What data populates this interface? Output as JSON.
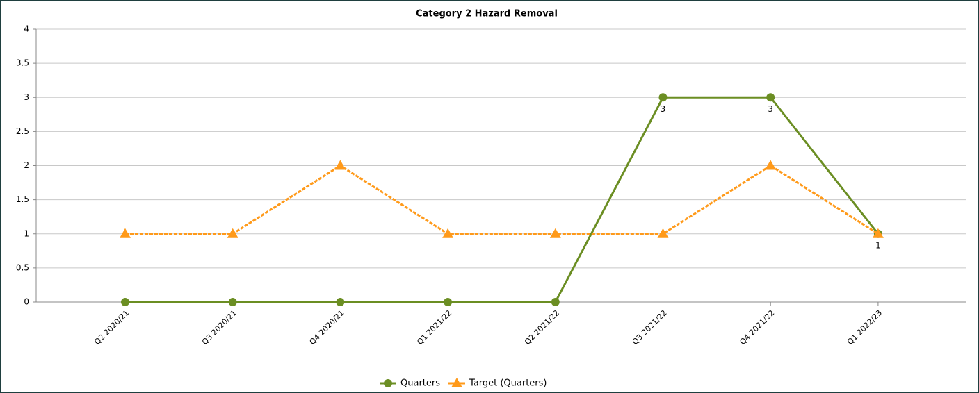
{
  "chart_data": {
    "type": "line",
    "title": "Category 2 Hazard Removal",
    "categories": [
      "Q2 2020/21",
      "Q3 2020/21",
      "Q4 2020/21",
      "Q1 2021/22",
      "Q2 2021/22",
      "Q3 2021/22",
      "Q4 2021/22",
      "Q1 2022/23"
    ],
    "series": [
      {
        "name": "Quarters",
        "color": "#6b8e23",
        "marker": "circle",
        "values": [
          0,
          0,
          0,
          0,
          0,
          3,
          3,
          1
        ],
        "value_labels": [
          null,
          null,
          null,
          null,
          null,
          "3",
          "3",
          "1"
        ]
      },
      {
        "name": "Target (Quarters)",
        "color": "#ff9a1a",
        "marker": "triangle",
        "dashed": true,
        "values": [
          1,
          1,
          2,
          1,
          1,
          1,
          2,
          1
        ]
      }
    ],
    "ylim": [
      0,
      4
    ],
    "yticks": [
      0,
      0.5,
      1,
      1.5,
      2,
      2.5,
      3,
      3.5,
      4
    ],
    "grid": true,
    "legend": "bottom"
  }
}
